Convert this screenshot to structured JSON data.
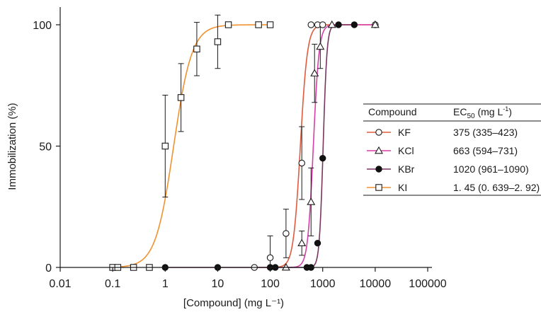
{
  "chart_data": {
    "type": "scatter",
    "xlabel": "[Compound] (mg L⁻¹)",
    "ylabel": "Immobilization (%)",
    "x_scale": "log",
    "xlim": [
      0.01,
      100000
    ],
    "ylim": [
      0,
      100
    ],
    "x_ticks": [
      0.01,
      0.1,
      1,
      10,
      100,
      1000,
      10000,
      100000
    ],
    "x_tick_labels": [
      "0.01",
      "0.1",
      "1",
      "10",
      "100",
      "1000",
      "10000",
      "100000"
    ],
    "y_ticks": [
      0,
      50,
      100
    ],
    "y_tick_labels": [
      "0",
      "50",
      "100"
    ],
    "grid": false,
    "legend": {
      "placement": "right",
      "header_compound": "Compound",
      "header_ec50": "EC",
      "header_ec50_sub": "50",
      "header_ec50_unit": " (mg L",
      "header_ec50_sup": "-1",
      "header_ec50_close": ")"
    },
    "series": [
      {
        "name": "KF",
        "ec50": "375 (335–423)",
        "color": "#e05a3e",
        "marker": "circle-open",
        "curve": {
          "ec50": 375,
          "hill": 6.5
        },
        "points": [
          {
            "x": 50,
            "y": 0
          },
          {
            "x": 100,
            "y": 4,
            "err": 9
          },
          {
            "x": 200,
            "y": 14,
            "err": 10
          },
          {
            "x": 400,
            "y": 43,
            "err": 15
          },
          {
            "x": 600,
            "y": 100
          },
          {
            "x": 800,
            "y": 100
          },
          {
            "x": 1000,
            "y": 100
          },
          {
            "x": 10000,
            "y": 100
          }
        ]
      },
      {
        "name": "KCl",
        "ec50": "663 (594–731)",
        "color": "#d63fa6",
        "marker": "triangle-open",
        "curve": {
          "ec50": 663,
          "hill": 8
        },
        "points": [
          {
            "x": 200,
            "y": 0
          },
          {
            "x": 400,
            "y": 10,
            "err": 5
          },
          {
            "x": 600,
            "y": 27,
            "err": 14
          },
          {
            "x": 700,
            "y": 80,
            "err": 12
          },
          {
            "x": 900,
            "y": 91,
            "err": 9
          },
          {
            "x": 1500,
            "y": 100
          },
          {
            "x": 10000,
            "y": 100
          }
        ]
      },
      {
        "name": "KBr",
        "ec50": "1020 (961–1090)",
        "color": "#7a3460",
        "marker": "circle-filled",
        "curve": {
          "ec50": 1020,
          "hill": 12
        },
        "points": [
          {
            "x": 1,
            "y": 0
          },
          {
            "x": 10,
            "y": 0
          },
          {
            "x": 100,
            "y": 0
          },
          {
            "x": 125,
            "y": 0
          },
          {
            "x": 500,
            "y": 0
          },
          {
            "x": 600,
            "y": 0
          },
          {
            "x": 800,
            "y": 10
          },
          {
            "x": 1000,
            "y": 45
          },
          {
            "x": 2000,
            "y": 100
          },
          {
            "x": 4000,
            "y": 100
          }
        ]
      },
      {
        "name": "KI",
        "ec50": "1. 45 (0. 639–2. 92)",
        "color": "#f0922f",
        "marker": "square-open",
        "curve": {
          "ec50": 1.45,
          "hill": 2.5
        },
        "points": [
          {
            "x": 0.1,
            "y": 0
          },
          {
            "x": 0.125,
            "y": 0
          },
          {
            "x": 0.25,
            "y": 0
          },
          {
            "x": 0.5,
            "y": 0
          },
          {
            "x": 1,
            "y": 50,
            "err": 21
          },
          {
            "x": 2,
            "y": 70,
            "err": 14
          },
          {
            "x": 4,
            "y": 90,
            "err": 11
          },
          {
            "x": 10,
            "y": 93,
            "err": 11
          },
          {
            "x": 16,
            "y": 100
          },
          {
            "x": 60,
            "y": 100
          },
          {
            "x": 100,
            "y": 100
          }
        ]
      }
    ]
  }
}
